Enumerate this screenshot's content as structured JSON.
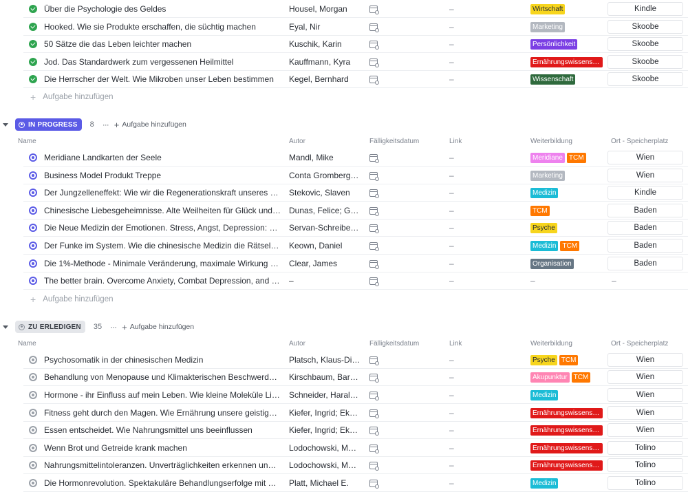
{
  "colors": {
    "done": "#2ea44f",
    "in_progress": "#5b5be6",
    "todo": "#9aa0a8",
    "tag_wirtschaft": "#f7d51d",
    "tag_marketing": "#b3b8c0",
    "tag_persoenlichkeit": "#7b3fe4",
    "tag_ernaehrung": "#e01919",
    "tag_wissenschaft": "#2f6a3d",
    "tag_meridiane": "#ee82ee",
    "tag_tcm": "#ff7800",
    "tag_medizin": "#1bbcd6",
    "tag_psyche": "#f7d51d",
    "tag_organisation": "#667684",
    "tag_akupunktur": "#ff85b3"
  },
  "columns": {
    "name": "Name",
    "autor": "Autor",
    "faelligkeit": "Fälligkeitsdatum",
    "link": "Link",
    "weiterbildung": "Weiterbildung",
    "ort": "Ort - Speicherplatz"
  },
  "add_task_label": "Aufgabe hinzufügen",
  "empty_value": "–",
  "icons": {
    "date": "calendar-icon",
    "done": "check-circle-icon",
    "caret": "caret-down-icon",
    "more": "more-dots-icon",
    "add": "plus-icon"
  },
  "groups": [
    {
      "status": "done",
      "label": "",
      "tasks": [
        {
          "name": "Über die Psychologie des Geldes",
          "author": "Housel, Morgan",
          "link": "–",
          "tags": [
            {
              "label": "Wirtschaft",
              "color": "#f7d51d",
              "dark": true
            }
          ],
          "location": "Kindle"
        },
        {
          "name": "Hooked. Wie sie Produkte erschaffen, die süchtig machen",
          "author": "Eyal, Nir",
          "link": "–",
          "tags": [
            {
              "label": "Marketing",
              "color": "#b3b8c0",
              "dark": false
            }
          ],
          "location": "Skoobe"
        },
        {
          "name": "50 Sätze die das Leben leichter machen",
          "author": "Kuschik, Karin",
          "link": "–",
          "tags": [
            {
              "label": "Persönlichkeit",
              "color": "#7b3fe4",
              "dark": false
            }
          ],
          "location": "Skoobe"
        },
        {
          "name": "Jod. Das Standardwerk zum vergessenen Heilmittel",
          "author": "Kauffmann, Kyra",
          "link": "–",
          "tags": [
            {
              "label": "Ernährungswissensc...",
              "color": "#e01919",
              "dark": false
            }
          ],
          "location": "Skoobe"
        },
        {
          "name": "Die Herrscher der Welt. Wie Mikroben unser Leben bestimmen",
          "author": "Kegel, Bernhard",
          "link": "–",
          "tags": [
            {
              "label": "Wissenschaft",
              "color": "#2f6a3d",
              "dark": false
            }
          ],
          "location": "Skoobe"
        }
      ]
    },
    {
      "status": "prog",
      "label": "IN PROGRESS",
      "count": "8",
      "tasks": [
        {
          "name": "Meridiane Landkarten der Seele",
          "author": "Mandl, Mike",
          "link": "–",
          "tags": [
            {
              "label": "Meridiane",
              "color": "#ee82ee",
              "dark": false
            },
            {
              "label": "TCM",
              "color": "#ff7800",
              "dark": false
            }
          ],
          "location": "Wien"
        },
        {
          "name": "Business Model Produkt Treppe",
          "author": "Conta Gromberg, B...",
          "link": "–",
          "tags": [
            {
              "label": "Marketing",
              "color": "#b3b8c0",
              "dark": false
            }
          ],
          "location": "Wien"
        },
        {
          "name": "Der Jungzelleneffekt: Wie wir die Regenerationskraft unseres Organi...",
          "author": "Stekovic, Slaven",
          "link": "–",
          "tags": [
            {
              "label": "Medizin",
              "color": "#1bbcd6",
              "dark": false
            }
          ],
          "location": "Kindle"
        },
        {
          "name": "Chinesische Liebesgeheimnisse. Alte Weilheiten für Glück und Gesu...",
          "author": "Dunas, Felice; Gold...",
          "link": "–",
          "tags": [
            {
              "label": "TCM",
              "color": "#ff7800",
              "dark": false
            }
          ],
          "location": "Baden"
        },
        {
          "name": "Die Neue Medizin der Emotionen. Stress, Angst, Depression: Gesund...",
          "author": "Servan-Schreiber, ...",
          "link": "–",
          "tags": [
            {
              "label": "Psyche",
              "color": "#f7d51d",
              "dark": true
            }
          ],
          "location": "Baden"
        },
        {
          "name": "Der Funke im System. Wie die chinesische Medizin die Rätsel der we...",
          "author": "Keown, Daniel",
          "link": "–",
          "tags": [
            {
              "label": "Medizin",
              "color": "#1bbcd6",
              "dark": false
            },
            {
              "label": "TCM",
              "color": "#ff7800",
              "dark": false
            }
          ],
          "location": "Baden"
        },
        {
          "name": "Die 1%-Methode - Minimale Veränderung, maximale Wirkung bzw. A...",
          "author": "Clear, James",
          "link": "–",
          "tags": [
            {
              "label": "Organisation",
              "color": "#667684",
              "dark": false
            }
          ],
          "location": "Baden"
        },
        {
          "name": "The better brain. Overcome Anxiety, Combat Depression, and Reduc...",
          "author": "–",
          "link": "–",
          "tags": [],
          "location": ""
        }
      ]
    },
    {
      "status": "todo",
      "label": "ZU ERLEDIGEN",
      "count": "35",
      "tasks": [
        {
          "name": "Psychosomatik in der chinesischen Medizin",
          "author": "Platsch, Klaus-Dieter",
          "link": "–",
          "tags": [
            {
              "label": "Psyche",
              "color": "#f7d51d",
              "dark": true
            },
            {
              "label": "TCM",
              "color": "#ff7800",
              "dark": false
            }
          ],
          "location": "Wien"
        },
        {
          "name": "Behandlung von Menopause und Klimakterischen Beschwerden - Pr...",
          "author": "Kirschbaum, Barba...",
          "link": "–",
          "tags": [
            {
              "label": "Akupunktur",
              "color": "#ff85b3",
              "dark": false
            },
            {
              "label": "TCM",
              "color": "#ff7800",
              "dark": false
            }
          ],
          "location": "Wien"
        },
        {
          "name": "Hormone - ihr Einfluss auf mein Leben. Wie kleine Moleküle Liebe, G...",
          "author": "Schneider, Harald ...",
          "link": "–",
          "tags": [
            {
              "label": "Medizin",
              "color": "#1bbcd6",
              "dark": false
            }
          ],
          "location": "Wien"
        },
        {
          "name": "Fitness geht durch den Magen. Wie Ernährung unsere geistige und k...",
          "author": "Kiefer, Ingrid; Ekm...",
          "link": "–",
          "tags": [
            {
              "label": "Ernährungswissensc...",
              "color": "#e01919",
              "dark": false
            }
          ],
          "location": "Wien"
        },
        {
          "name": "Essen entscheidet. Wie Nahrungsmittel uns beeinflussen",
          "author": "Kiefer, Ingrid; Ekm...",
          "link": "–",
          "tags": [
            {
              "label": "Ernährungswissensc...",
              "color": "#e01919",
              "dark": false
            }
          ],
          "location": "Wien"
        },
        {
          "name": "Wenn Brot und Getreide krank machen",
          "author": "Lodochowski, Maxi...",
          "link": "–",
          "tags": [
            {
              "label": "Ernährungswissensc...",
              "color": "#e01919",
              "dark": false
            }
          ],
          "location": "Tolino"
        },
        {
          "name": "Nahrungsmittelintoleranzen. Unverträglichkeiten erkennen und gut ...",
          "author": "Lodochowski, Maxi...",
          "link": "–",
          "tags": [
            {
              "label": "Ernährungswissensc...",
              "color": "#e01919",
              "dark": false
            }
          ],
          "location": "Tolino"
        },
        {
          "name": "Die Hormonrevolution. Spektakuläre Behandlungserfolge mit bioiden...",
          "author": "Platt, Michael E.",
          "link": "–",
          "tags": [
            {
              "label": "Medizin",
              "color": "#1bbcd6",
              "dark": false
            }
          ],
          "location": "Tolino"
        }
      ]
    }
  ]
}
